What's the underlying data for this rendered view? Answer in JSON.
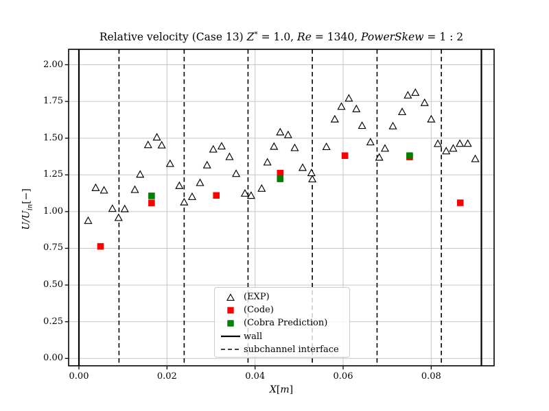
{
  "title_segments": [
    {
      "text": "Relative velocity (Case 13) ",
      "style": "plain"
    },
    {
      "text": "Z",
      "style": "italic"
    },
    {
      "text": "*",
      "style": "sup"
    },
    {
      "text": " = 1.0, ",
      "style": "plain"
    },
    {
      "text": "Re",
      "style": "italic"
    },
    {
      "text": " = 1340, ",
      "style": "plain"
    },
    {
      "text": "PowerSkew",
      "style": "italic"
    },
    {
      "text": " = 1 : 2",
      "style": "plain"
    }
  ],
  "xlabel_segments": [
    {
      "text": "X",
      "style": "italic"
    },
    {
      "text": "[",
      "style": "plain"
    },
    {
      "text": "m",
      "style": "italic"
    },
    {
      "text": "]",
      "style": "plain"
    }
  ],
  "ylabel_segments": [
    {
      "text": "U/U",
      "style": "italic"
    },
    {
      "text": "in",
      "style": "sub"
    },
    {
      "text": "[−]",
      "style": "plain"
    }
  ],
  "chart_data": {
    "type": "scatter",
    "title": "Relative velocity (Case 13) Z* = 1.0, Re = 1340, PowerSkew = 1:2",
    "xlabel": "X[m]",
    "ylabel": "U/U_in[-]",
    "xlim": [
      -0.00234,
      0.09428
    ],
    "ylim": [
      -0.05,
      2.105
    ],
    "xticks": [
      0.0,
      0.02,
      0.04,
      0.06,
      0.08
    ],
    "xtick_labels": [
      "0.00",
      "0.02",
      "0.04",
      "0.06",
      "0.08"
    ],
    "yticks": [
      0.0,
      0.25,
      0.5,
      0.75,
      1.0,
      1.25,
      1.5,
      1.75,
      2.0
    ],
    "ytick_labels": [
      "0.00",
      "0.25",
      "0.50",
      "0.75",
      "1.00",
      "1.25",
      "1.50",
      "1.75",
      "2.00"
    ],
    "grid": true,
    "grid_color": "#c6c6c6",
    "series": [
      {
        "name": "(EXP)",
        "marker": "open-triangle",
        "color": "#000000",
        "fill": "#ffffff",
        "points": [
          [
            0.0021,
            0.939
          ],
          [
            0.0038,
            1.163
          ],
          [
            0.0057,
            1.146
          ],
          [
            0.0076,
            1.021
          ],
          [
            0.009,
            0.959
          ],
          [
            0.0104,
            1.019
          ],
          [
            0.0127,
            1.15
          ],
          [
            0.0139,
            1.254
          ],
          [
            0.0157,
            1.455
          ],
          [
            0.0177,
            1.507
          ],
          [
            0.0188,
            1.453
          ],
          [
            0.0207,
            1.327
          ],
          [
            0.0228,
            1.177
          ],
          [
            0.0239,
            1.065
          ],
          [
            0.0257,
            1.102
          ],
          [
            0.0275,
            1.197
          ],
          [
            0.0291,
            1.317
          ],
          [
            0.0305,
            1.425
          ],
          [
            0.0324,
            1.446
          ],
          [
            0.0342,
            1.374
          ],
          [
            0.0357,
            1.259
          ],
          [
            0.0377,
            1.125
          ],
          [
            0.0391,
            1.11
          ],
          [
            0.0415,
            1.158
          ],
          [
            0.0428,
            1.337
          ],
          [
            0.0443,
            1.444
          ],
          [
            0.0457,
            1.542
          ],
          [
            0.0475,
            1.523
          ],
          [
            0.049,
            1.435
          ],
          [
            0.0508,
            1.3
          ],
          [
            0.0528,
            1.264
          ],
          [
            0.053,
            1.222
          ],
          [
            0.0562,
            1.442
          ],
          [
            0.0581,
            1.63
          ],
          [
            0.0596,
            1.716
          ],
          [
            0.0613,
            1.772
          ],
          [
            0.063,
            1.7
          ],
          [
            0.0643,
            1.586
          ],
          [
            0.0662,
            1.474
          ],
          [
            0.0682,
            1.37
          ],
          [
            0.0695,
            1.431
          ],
          [
            0.0713,
            1.583
          ],
          [
            0.0734,
            1.68
          ],
          [
            0.0747,
            1.793
          ],
          [
            0.0764,
            1.811
          ],
          [
            0.0785,
            1.742
          ],
          [
            0.08,
            1.63
          ],
          [
            0.0815,
            1.463
          ],
          [
            0.0834,
            1.413
          ],
          [
            0.085,
            1.431
          ],
          [
            0.0865,
            1.464
          ],
          [
            0.0883,
            1.464
          ],
          [
            0.09,
            1.36
          ]
        ]
      },
      {
        "name": "(Code)",
        "marker": "filled-square",
        "color": "#ff0000",
        "points": [
          [
            0.0049,
            0.763
          ],
          [
            0.0165,
            1.059
          ],
          [
            0.0312,
            1.11
          ],
          [
            0.0457,
            1.262
          ],
          [
            0.0604,
            1.381
          ],
          [
            0.0751,
            1.372
          ],
          [
            0.0866,
            1.06
          ]
        ]
      },
      {
        "name": "(Cobra Prediction)",
        "marker": "filled-square",
        "color": "#008000",
        "points": [
          [
            0.0165,
            1.107
          ],
          [
            0.0457,
            1.223
          ],
          [
            0.0751,
            1.381
          ]
        ]
      }
    ],
    "vlines": {
      "wall": {
        "label": "wall",
        "style": "solid",
        "color": "#000000",
        "positions": [
          0.0,
          0.0914
        ]
      },
      "subchannel_interface": {
        "label": "subchannel interface",
        "style": "dashed",
        "color": "#000000",
        "positions": [
          0.0091,
          0.0239,
          0.0384,
          0.053,
          0.0677,
          0.0823
        ]
      }
    },
    "legend": {
      "position": "lower center",
      "entries": [
        "(EXP)",
        "(Code)",
        "(Cobra Prediction)",
        "wall",
        "subchannel interface"
      ]
    }
  }
}
